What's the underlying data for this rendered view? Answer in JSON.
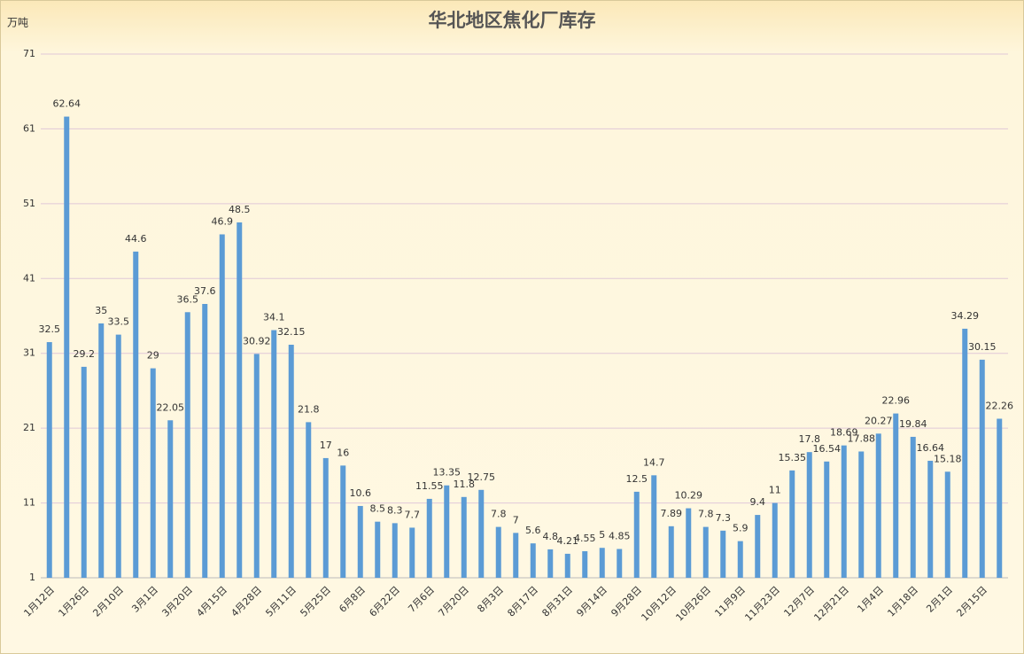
{
  "chart_data": {
    "type": "bar",
    "title": "华北地区焦化厂库存",
    "y_label": "万吨",
    "color": "#5b9bd5",
    "grid": true,
    "categories": [
      "1月12日",
      null,
      "1月26日",
      null,
      "2月10日",
      null,
      "3月1日",
      null,
      "3月20日",
      null,
      "4月15日",
      null,
      "4月28日",
      null,
      "5月11日",
      null,
      "5月25日",
      null,
      "6月8日",
      null,
      "6月22日",
      null,
      "7月6日",
      null,
      "7月20日",
      null,
      "8月3日",
      null,
      "8月17日",
      null,
      "8月31日",
      null,
      "9月14日",
      null,
      "9月28日",
      null,
      "10月12日",
      null,
      "10月26日",
      null,
      "11月9日",
      null,
      "11月23日",
      null,
      "12月7日",
      null,
      "12月21日",
      null,
      "1月4日",
      null,
      "1月18日",
      null,
      "2月1日",
      null,
      "2月15日",
      null
    ],
    "values": [
      32.5,
      62.64,
      29.2,
      35,
      33.5,
      44.6,
      29,
      22.05,
      36.5,
      37.6,
      46.9,
      48.5,
      30.92,
      34.1,
      32.15,
      21.8,
      17,
      16,
      10.6,
      8.5,
      8.3,
      7.7,
      11.55,
      13.35,
      11.8,
      12.75,
      7.8,
      7,
      5.6,
      4.8,
      4.21,
      4.55,
      5,
      4.85,
      12.5,
      14.7,
      7.89,
      10.29,
      7.8,
      7.3,
      5.9,
      9.4,
      11,
      15.35,
      17.8,
      16.54,
      18.69,
      17.88,
      20.27,
      22.96,
      19.84,
      16.64,
      15.18,
      34.29,
      30.15,
      22.26
    ],
    "ylim": [
      1,
      71
    ],
    "yticks": [
      1,
      11,
      21,
      31,
      41,
      51,
      61,
      71
    ]
  }
}
